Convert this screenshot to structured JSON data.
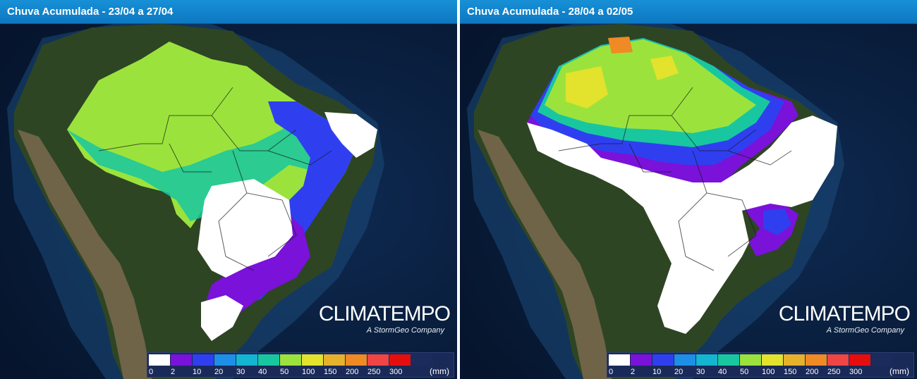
{
  "colors": {
    "ocean": "#0c2344",
    "ocean_deep": "#06152d",
    "land_forest": "#2f4a25",
    "land_dry": "#7a6a4f",
    "white_rain_0": "#ffffff",
    "title_bar": "#1284cc"
  },
  "panels": [
    {
      "title": "Chuva Acumulada - 23/04 a 27/04",
      "logo": "CLIMATEMPO",
      "logo_subtitle": "A StormGeo Company"
    },
    {
      "title": "Chuva Acumulada - 28/04 a 02/05",
      "logo": "CLIMATEMPO",
      "logo_subtitle": "A StormGeo Company"
    }
  ],
  "legend": {
    "unit": "(mm)",
    "classes": [
      {
        "label": "0",
        "color": "#ffffff"
      },
      {
        "label": "2",
        "color": "#7a12d9"
      },
      {
        "label": "10",
        "color": "#2f3ff0"
      },
      {
        "label": "20",
        "color": "#1d8fe6"
      },
      {
        "label": "30",
        "color": "#14b5d1"
      },
      {
        "label": "40",
        "color": "#18c7a0"
      },
      {
        "label": "50",
        "color": "#9be33c"
      },
      {
        "label": "100",
        "color": "#e3e22c"
      },
      {
        "label": "150",
        "color": "#e6b22c"
      },
      {
        "label": "200",
        "color": "#ef8a25"
      },
      {
        "label": "250",
        "color": "#ef4545"
      },
      {
        "label": "300",
        "color": "#e40e0e"
      },
      {
        "label": "",
        "color": "#1b2c5c"
      }
    ]
  }
}
